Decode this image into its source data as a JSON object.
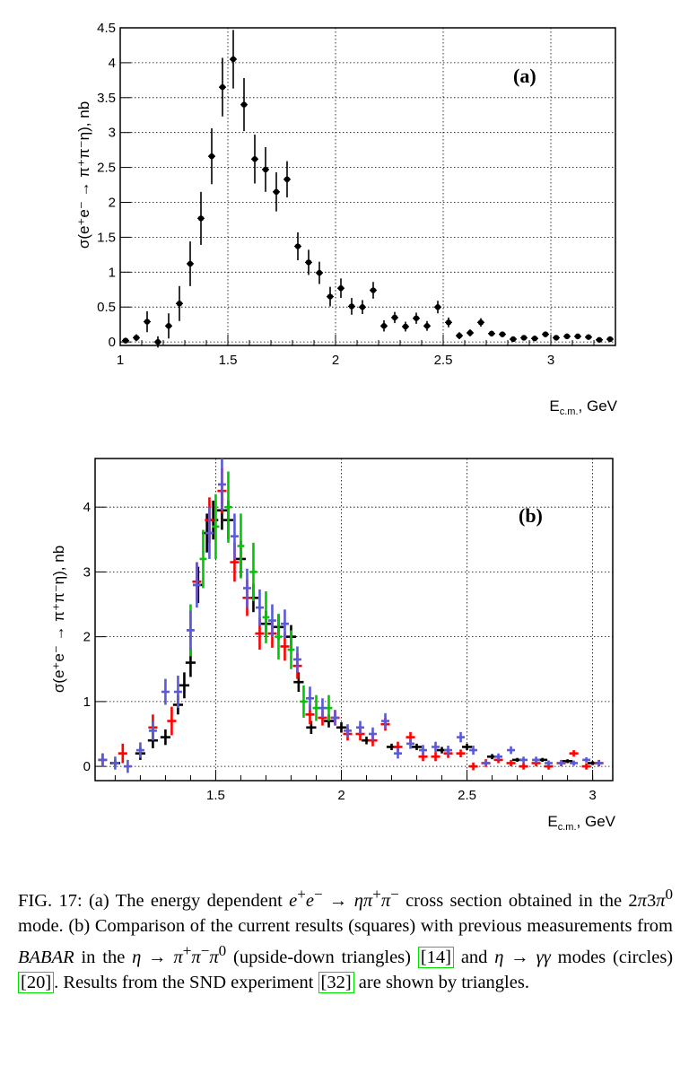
{
  "chart_data": [
    {
      "type": "scatter",
      "panel_label": "(a)",
      "ylabel": "σ(e⁺e⁻ → π⁺π⁻η), nb",
      "xlabel": "E_c.m., GeV",
      "xlabel_main": "E",
      "xlabel_sub": "c.m.",
      "xlabel_tail": ", GeV",
      "xlim": [
        1.0,
        3.3
      ],
      "ylim": [
        -0.05,
        4.5
      ],
      "xticks": [
        "1",
        "1.5",
        "2",
        "2.5",
        "3"
      ],
      "yticks": [
        "0",
        "0.5",
        "1",
        "1.5",
        "2",
        "2.5",
        "3",
        "3.5",
        "4",
        "4.5"
      ],
      "grid": true,
      "series": [
        {
          "color": "#000000",
          "points": [
            {
              "x": 1.025,
              "y": 0.02,
              "e": 0.04
            },
            {
              "x": 1.075,
              "y": 0.06,
              "e": 0.05
            },
            {
              "x": 1.125,
              "y": 0.29,
              "e": 0.15
            },
            {
              "x": 1.175,
              "y": 0.0,
              "e": 0.08
            },
            {
              "x": 1.225,
              "y": 0.23,
              "e": 0.18
            },
            {
              "x": 1.275,
              "y": 0.55,
              "e": 0.25
            },
            {
              "x": 1.325,
              "y": 1.12,
              "e": 0.32
            },
            {
              "x": 1.375,
              "y": 1.77,
              "e": 0.38
            },
            {
              "x": 1.425,
              "y": 2.66,
              "e": 0.4
            },
            {
              "x": 1.475,
              "y": 3.65,
              "e": 0.42
            },
            {
              "x": 1.525,
              "y": 4.05,
              "e": 0.42
            },
            {
              "x": 1.575,
              "y": 3.4,
              "e": 0.38
            },
            {
              "x": 1.625,
              "y": 2.62,
              "e": 0.35
            },
            {
              "x": 1.675,
              "y": 2.47,
              "e": 0.32
            },
            {
              "x": 1.725,
              "y": 2.15,
              "e": 0.28
            },
            {
              "x": 1.775,
              "y": 2.33,
              "e": 0.26
            },
            {
              "x": 1.825,
              "y": 1.37,
              "e": 0.2
            },
            {
              "x": 1.875,
              "y": 1.14,
              "e": 0.18
            },
            {
              "x": 1.925,
              "y": 0.99,
              "e": 0.16
            },
            {
              "x": 1.975,
              "y": 0.65,
              "e": 0.14
            },
            {
              "x": 2.025,
              "y": 0.77,
              "e": 0.14
            },
            {
              "x": 2.075,
              "y": 0.51,
              "e": 0.12
            },
            {
              "x": 2.125,
              "y": 0.5,
              "e": 0.1
            },
            {
              "x": 2.175,
              "y": 0.74,
              "e": 0.12
            },
            {
              "x": 2.225,
              "y": 0.23,
              "e": 0.08
            },
            {
              "x": 2.275,
              "y": 0.35,
              "e": 0.08
            },
            {
              "x": 2.325,
              "y": 0.22,
              "e": 0.07
            },
            {
              "x": 2.375,
              "y": 0.34,
              "e": 0.08
            },
            {
              "x": 2.425,
              "y": 0.23,
              "e": 0.07
            },
            {
              "x": 2.475,
              "y": 0.5,
              "e": 0.09
            },
            {
              "x": 2.525,
              "y": 0.28,
              "e": 0.07
            },
            {
              "x": 2.575,
              "y": 0.09,
              "e": 0.05
            },
            {
              "x": 2.625,
              "y": 0.13,
              "e": 0.05
            },
            {
              "x": 2.675,
              "y": 0.28,
              "e": 0.06
            },
            {
              "x": 2.725,
              "y": 0.12,
              "e": 0.04
            },
            {
              "x": 2.775,
              "y": 0.11,
              "e": 0.04
            },
            {
              "x": 2.825,
              "y": 0.04,
              "e": 0.03
            },
            {
              "x": 2.875,
              "y": 0.06,
              "e": 0.03
            },
            {
              "x": 2.925,
              "y": 0.05,
              "e": 0.03
            },
            {
              "x": 2.975,
              "y": 0.11,
              "e": 0.04
            },
            {
              "x": 3.025,
              "y": 0.06,
              "e": 0.03
            },
            {
              "x": 3.075,
              "y": 0.08,
              "e": 0.03
            },
            {
              "x": 3.125,
              "y": 0.08,
              "e": 0.03
            },
            {
              "x": 3.175,
              "y": 0.07,
              "e": 0.03
            },
            {
              "x": 3.225,
              "y": 0.03,
              "e": 0.03
            },
            {
              "x": 3.275,
              "y": 0.04,
              "e": 0.03
            }
          ]
        }
      ]
    },
    {
      "type": "scatter",
      "panel_label": "(b)",
      "ylabel": "σ(e⁺e⁻ → π⁺π⁻η), nb",
      "xlabel": "E_c.m., GeV",
      "xlabel_main": "E",
      "xlabel_sub": "c.m.",
      "xlabel_tail": ", GeV",
      "xlim": [
        1.02,
        3.08
      ],
      "ylim": [
        -0.22,
        4.75
      ],
      "xticks": [
        "1.5",
        "2",
        "2.5",
        "3"
      ],
      "yticks": [
        "0",
        "1",
        "2",
        "3",
        "4"
      ],
      "grid": true,
      "series": [
        {
          "marker": "squares",
          "color": "#000000",
          "points": [
            {
              "x": 1.1,
              "y": 0.05,
              "e": 0.05
            },
            {
              "x": 1.2,
              "y": 0.2,
              "e": 0.1
            },
            {
              "x": 1.25,
              "y": 0.4,
              "e": 0.12
            },
            {
              "x": 1.3,
              "y": 0.45,
              "e": 0.12
            },
            {
              "x": 1.35,
              "y": 0.95,
              "e": 0.15
            },
            {
              "x": 1.375,
              "y": 1.25,
              "e": 0.2
            },
            {
              "x": 1.4,
              "y": 1.6,
              "e": 0.22
            },
            {
              "x": 1.43,
              "y": 2.8,
              "e": 0.28
            },
            {
              "x": 1.465,
              "y": 3.6,
              "e": 0.3
            },
            {
              "x": 1.49,
              "y": 3.8,
              "e": 0.3
            },
            {
              "x": 1.525,
              "y": 3.95,
              "e": 0.3
            },
            {
              "x": 1.55,
              "y": 3.8,
              "e": 0.3
            },
            {
              "x": 1.6,
              "y": 3.2,
              "e": 0.28
            },
            {
              "x": 1.65,
              "y": 2.6,
              "e": 0.22
            },
            {
              "x": 1.7,
              "y": 2.2,
              "e": 0.2
            },
            {
              "x": 1.75,
              "y": 2.15,
              "e": 0.2
            },
            {
              "x": 1.8,
              "y": 2.0,
              "e": 0.18
            },
            {
              "x": 1.83,
              "y": 1.3,
              "e": 0.15
            },
            {
              "x": 1.88,
              "y": 0.6,
              "e": 0.1
            },
            {
              "x": 1.95,
              "y": 0.7,
              "e": 0.1
            },
            {
              "x": 2.0,
              "y": 0.6,
              "e": 0.08
            },
            {
              "x": 2.1,
              "y": 0.4,
              "e": 0.06
            },
            {
              "x": 2.2,
              "y": 0.3,
              "e": 0.05
            },
            {
              "x": 2.3,
              "y": 0.3,
              "e": 0.05
            },
            {
              "x": 2.4,
              "y": 0.25,
              "e": 0.05
            },
            {
              "x": 2.5,
              "y": 0.3,
              "e": 0.05
            },
            {
              "x": 2.6,
              "y": 0.15,
              "e": 0.04
            },
            {
              "x": 2.7,
              "y": 0.1,
              "e": 0.03
            },
            {
              "x": 2.8,
              "y": 0.1,
              "e": 0.03
            },
            {
              "x": 2.9,
              "y": 0.08,
              "e": 0.03
            },
            {
              "x": 3.0,
              "y": 0.05,
              "e": 0.03
            }
          ]
        },
        {
          "marker": "upside-down triangles",
          "color": "#ff0000",
          "points": [
            {
              "x": 1.05,
              "y": 0.1,
              "e": 0.1
            },
            {
              "x": 1.13,
              "y": 0.2,
              "e": 0.15
            },
            {
              "x": 1.25,
              "y": 0.6,
              "e": 0.2
            },
            {
              "x": 1.325,
              "y": 0.7,
              "e": 0.22
            },
            {
              "x": 1.425,
              "y": 2.85,
              "e": 0.3
            },
            {
              "x": 1.475,
              "y": 3.8,
              "e": 0.35
            },
            {
              "x": 1.525,
              "y": 4.25,
              "e": 0.35
            },
            {
              "x": 1.575,
              "y": 3.15,
              "e": 0.3
            },
            {
              "x": 1.625,
              "y": 2.6,
              "e": 0.28
            },
            {
              "x": 1.675,
              "y": 2.05,
              "e": 0.25
            },
            {
              "x": 1.725,
              "y": 2.05,
              "e": 0.22
            },
            {
              "x": 1.775,
              "y": 1.85,
              "e": 0.22
            },
            {
              "x": 1.825,
              "y": 1.55,
              "e": 0.2
            },
            {
              "x": 1.875,
              "y": 0.8,
              "e": 0.15
            },
            {
              "x": 1.925,
              "y": 0.75,
              "e": 0.12
            },
            {
              "x": 1.975,
              "y": 0.75,
              "e": 0.12
            },
            {
              "x": 2.025,
              "y": 0.5,
              "e": 0.1
            },
            {
              "x": 2.075,
              "y": 0.5,
              "e": 0.1
            },
            {
              "x": 2.125,
              "y": 0.4,
              "e": 0.09
            },
            {
              "x": 2.175,
              "y": 0.65,
              "e": 0.1
            },
            {
              "x": 2.225,
              "y": 0.3,
              "e": 0.08
            },
            {
              "x": 2.275,
              "y": 0.45,
              "e": 0.08
            },
            {
              "x": 2.325,
              "y": 0.15,
              "e": 0.07
            },
            {
              "x": 2.375,
              "y": 0.15,
              "e": 0.07
            },
            {
              "x": 2.425,
              "y": 0.2,
              "e": 0.07
            },
            {
              "x": 2.475,
              "y": 0.2,
              "e": 0.06
            },
            {
              "x": 2.525,
              "y": 0.0,
              "e": 0.06
            },
            {
              "x": 2.575,
              "y": 0.05,
              "e": 0.06
            },
            {
              "x": 2.625,
              "y": 0.1,
              "e": 0.05
            },
            {
              "x": 2.675,
              "y": 0.05,
              "e": 0.05
            },
            {
              "x": 2.725,
              "y": 0.0,
              "e": 0.05
            },
            {
              "x": 2.775,
              "y": 0.05,
              "e": 0.05
            },
            {
              "x": 2.825,
              "y": 0.0,
              "e": 0.05
            },
            {
              "x": 2.875,
              "y": 0.05,
              "e": 0.05
            },
            {
              "x": 2.925,
              "y": 0.2,
              "e": 0.05
            },
            {
              "x": 2.975,
              "y": 0.0,
              "e": 0.05
            },
            {
              "x": 3.025,
              "y": 0.05,
              "e": 0.05
            }
          ]
        },
        {
          "marker": "circles",
          "color": "#00c800",
          "points": [
            {
              "x": 1.4,
              "y": 2.1,
              "e": 0.4
            },
            {
              "x": 1.45,
              "y": 3.2,
              "e": 0.45
            },
            {
              "x": 1.5,
              "y": 3.7,
              "e": 0.5
            },
            {
              "x": 1.55,
              "y": 4.0,
              "e": 0.55
            },
            {
              "x": 1.6,
              "y": 3.4,
              "e": 0.5
            },
            {
              "x": 1.65,
              "y": 3.0,
              "e": 0.45
            },
            {
              "x": 1.7,
              "y": 2.3,
              "e": 0.4
            },
            {
              "x": 1.75,
              "y": 2.0,
              "e": 0.35
            },
            {
              "x": 1.8,
              "y": 1.8,
              "e": 0.3
            },
            {
              "x": 1.85,
              "y": 1.0,
              "e": 0.25
            },
            {
              "x": 1.9,
              "y": 0.9,
              "e": 0.2
            },
            {
              "x": 1.95,
              "y": 0.9,
              "e": 0.2
            }
          ]
        },
        {
          "marker": "triangles",
          "color": "#5a5ad6",
          "points": [
            {
              "x": 1.05,
              "y": 0.1,
              "e": 0.1
            },
            {
              "x": 1.1,
              "y": 0.05,
              "e": 0.1
            },
            {
              "x": 1.15,
              "y": 0.0,
              "e": 0.1
            },
            {
              "x": 1.2,
              "y": 0.25,
              "e": 0.12
            },
            {
              "x": 1.25,
              "y": 0.55,
              "e": 0.15
            },
            {
              "x": 1.3,
              "y": 1.15,
              "e": 0.2
            },
            {
              "x": 1.35,
              "y": 1.15,
              "e": 0.25
            },
            {
              "x": 1.4,
              "y": 2.1,
              "e": 0.3
            },
            {
              "x": 1.425,
              "y": 2.8,
              "e": 0.35
            },
            {
              "x": 1.475,
              "y": 3.6,
              "e": 0.4
            },
            {
              "x": 1.525,
              "y": 4.35,
              "e": 0.4
            },
            {
              "x": 1.575,
              "y": 3.55,
              "e": 0.35
            },
            {
              "x": 1.625,
              "y": 2.75,
              "e": 0.3
            },
            {
              "x": 1.675,
              "y": 2.45,
              "e": 0.28
            },
            {
              "x": 1.725,
              "y": 2.25,
              "e": 0.25
            },
            {
              "x": 1.775,
              "y": 2.2,
              "e": 0.22
            },
            {
              "x": 1.825,
              "y": 1.65,
              "e": 0.2
            },
            {
              "x": 1.875,
              "y": 1.05,
              "e": 0.18
            },
            {
              "x": 1.925,
              "y": 0.9,
              "e": 0.15
            },
            {
              "x": 1.975,
              "y": 0.75,
              "e": 0.12
            },
            {
              "x": 2.025,
              "y": 0.55,
              "e": 0.1
            },
            {
              "x": 2.075,
              "y": 0.6,
              "e": 0.1
            },
            {
              "x": 2.125,
              "y": 0.5,
              "e": 0.1
            },
            {
              "x": 2.175,
              "y": 0.7,
              "e": 0.12
            },
            {
              "x": 2.225,
              "y": 0.2,
              "e": 0.08
            },
            {
              "x": 2.275,
              "y": 0.35,
              "e": 0.08
            },
            {
              "x": 2.325,
              "y": 0.25,
              "e": 0.08
            },
            {
              "x": 2.375,
              "y": 0.3,
              "e": 0.08
            },
            {
              "x": 2.425,
              "y": 0.25,
              "e": 0.07
            },
            {
              "x": 2.475,
              "y": 0.45,
              "e": 0.08
            },
            {
              "x": 2.525,
              "y": 0.25,
              "e": 0.07
            },
            {
              "x": 2.575,
              "y": 0.05,
              "e": 0.05
            },
            {
              "x": 2.625,
              "y": 0.15,
              "e": 0.05
            },
            {
              "x": 2.675,
              "y": 0.25,
              "e": 0.06
            },
            {
              "x": 2.725,
              "y": 0.1,
              "e": 0.05
            },
            {
              "x": 2.775,
              "y": 0.1,
              "e": 0.05
            },
            {
              "x": 2.825,
              "y": 0.05,
              "e": 0.04
            },
            {
              "x": 2.875,
              "y": 0.05,
              "e": 0.04
            },
            {
              "x": 2.925,
              "y": 0.05,
              "e": 0.04
            },
            {
              "x": 2.975,
              "y": 0.1,
              "e": 0.04
            },
            {
              "x": 3.025,
              "y": 0.05,
              "e": 0.04
            }
          ]
        }
      ]
    }
  ],
  "caption": {
    "fig_label": "FIG. 17:",
    "part1": "(a) The energy dependent",
    "part2": "cross section obtained in the",
    "part3": "mode. (b) Comparison of the current results (squares) with previous measurements from",
    "babar": "BABAR",
    "part4": "in the",
    "part5": "(upside-down triangles)",
    "ref1": "[14]",
    "part6": "and",
    "part7": "modes (circles)",
    "ref2": "[20]",
    "part8": ". Results from the SND experiment",
    "ref3": "[32]",
    "part9": "are shown by triangles."
  }
}
